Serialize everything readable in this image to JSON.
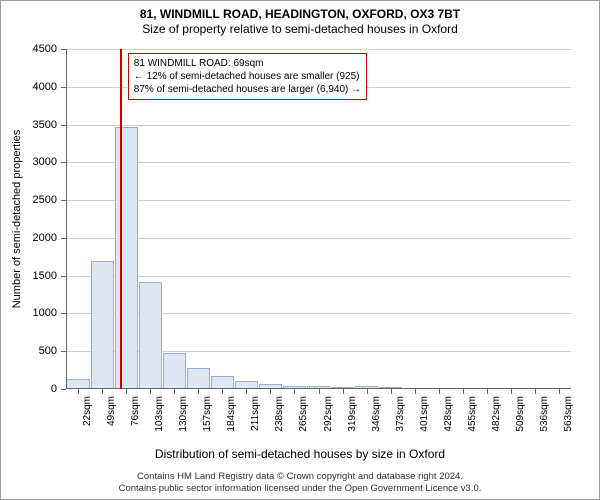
{
  "title": "81, WINDMILL ROAD, HEADINGTON, OXFORD, OX3 7BT",
  "subtitle": "Size of property relative to semi-detached houses in Oxford",
  "y_axis_label": "Number of semi-detached properties",
  "x_axis_label": "Distribution of semi-detached houses by size in Oxford",
  "footer_line1": "Contains HM Land Registry data © Crown copyright and database right 2024.",
  "footer_line2": "Contains public sector information licensed under the Open Government Licence v3.0.",
  "chart": {
    "type": "histogram",
    "ylim": [
      0,
      4500
    ],
    "ytick_step": 500,
    "y_ticks": [
      0,
      500,
      1000,
      1500,
      2000,
      2500,
      3000,
      3500,
      4000,
      4500
    ],
    "x_start_sqm": 22,
    "x_step_sqm": 27,
    "x_tick_count": 21,
    "bar_fill": "#dde6f2",
    "bar_border": "#9ab1d0",
    "grid_color": "#d0d0d0",
    "axis_color": "#666666",
    "marker_color": "#cc0000",
    "marker_sqm": 69,
    "background_color": "#ffffff",
    "title_fontsize": 12,
    "subtitle_fontsize": 12,
    "axis_label_fontsize": 11,
    "tick_fontsize": 10,
    "bars": [
      {
        "sqm": 22,
        "value": 130
      },
      {
        "sqm": 49,
        "value": 1700
      },
      {
        "sqm": 76,
        "value": 3470
      },
      {
        "sqm": 103,
        "value": 1420
      },
      {
        "sqm": 130,
        "value": 480
      },
      {
        "sqm": 157,
        "value": 280
      },
      {
        "sqm": 184,
        "value": 175
      },
      {
        "sqm": 211,
        "value": 105
      },
      {
        "sqm": 238,
        "value": 70
      },
      {
        "sqm": 265,
        "value": 40
      },
      {
        "sqm": 292,
        "value": 40
      },
      {
        "sqm": 319,
        "value": 25
      },
      {
        "sqm": 346,
        "value": 35
      },
      {
        "sqm": 373,
        "value": 10
      },
      {
        "sqm": 401,
        "value": 0
      },
      {
        "sqm": 428,
        "value": 0
      },
      {
        "sqm": 455,
        "value": 0
      },
      {
        "sqm": 482,
        "value": 0
      },
      {
        "sqm": 509,
        "value": 0
      },
      {
        "sqm": 536,
        "value": 0
      },
      {
        "sqm": 563,
        "value": 0
      }
    ]
  },
  "info_box": {
    "line1": "81 WINDMILL ROAD: 69sqm",
    "line2": "← 12% of semi-detached houses are smaller (925)",
    "line3": "87% of semi-detached houses are larger (6,940) →"
  }
}
